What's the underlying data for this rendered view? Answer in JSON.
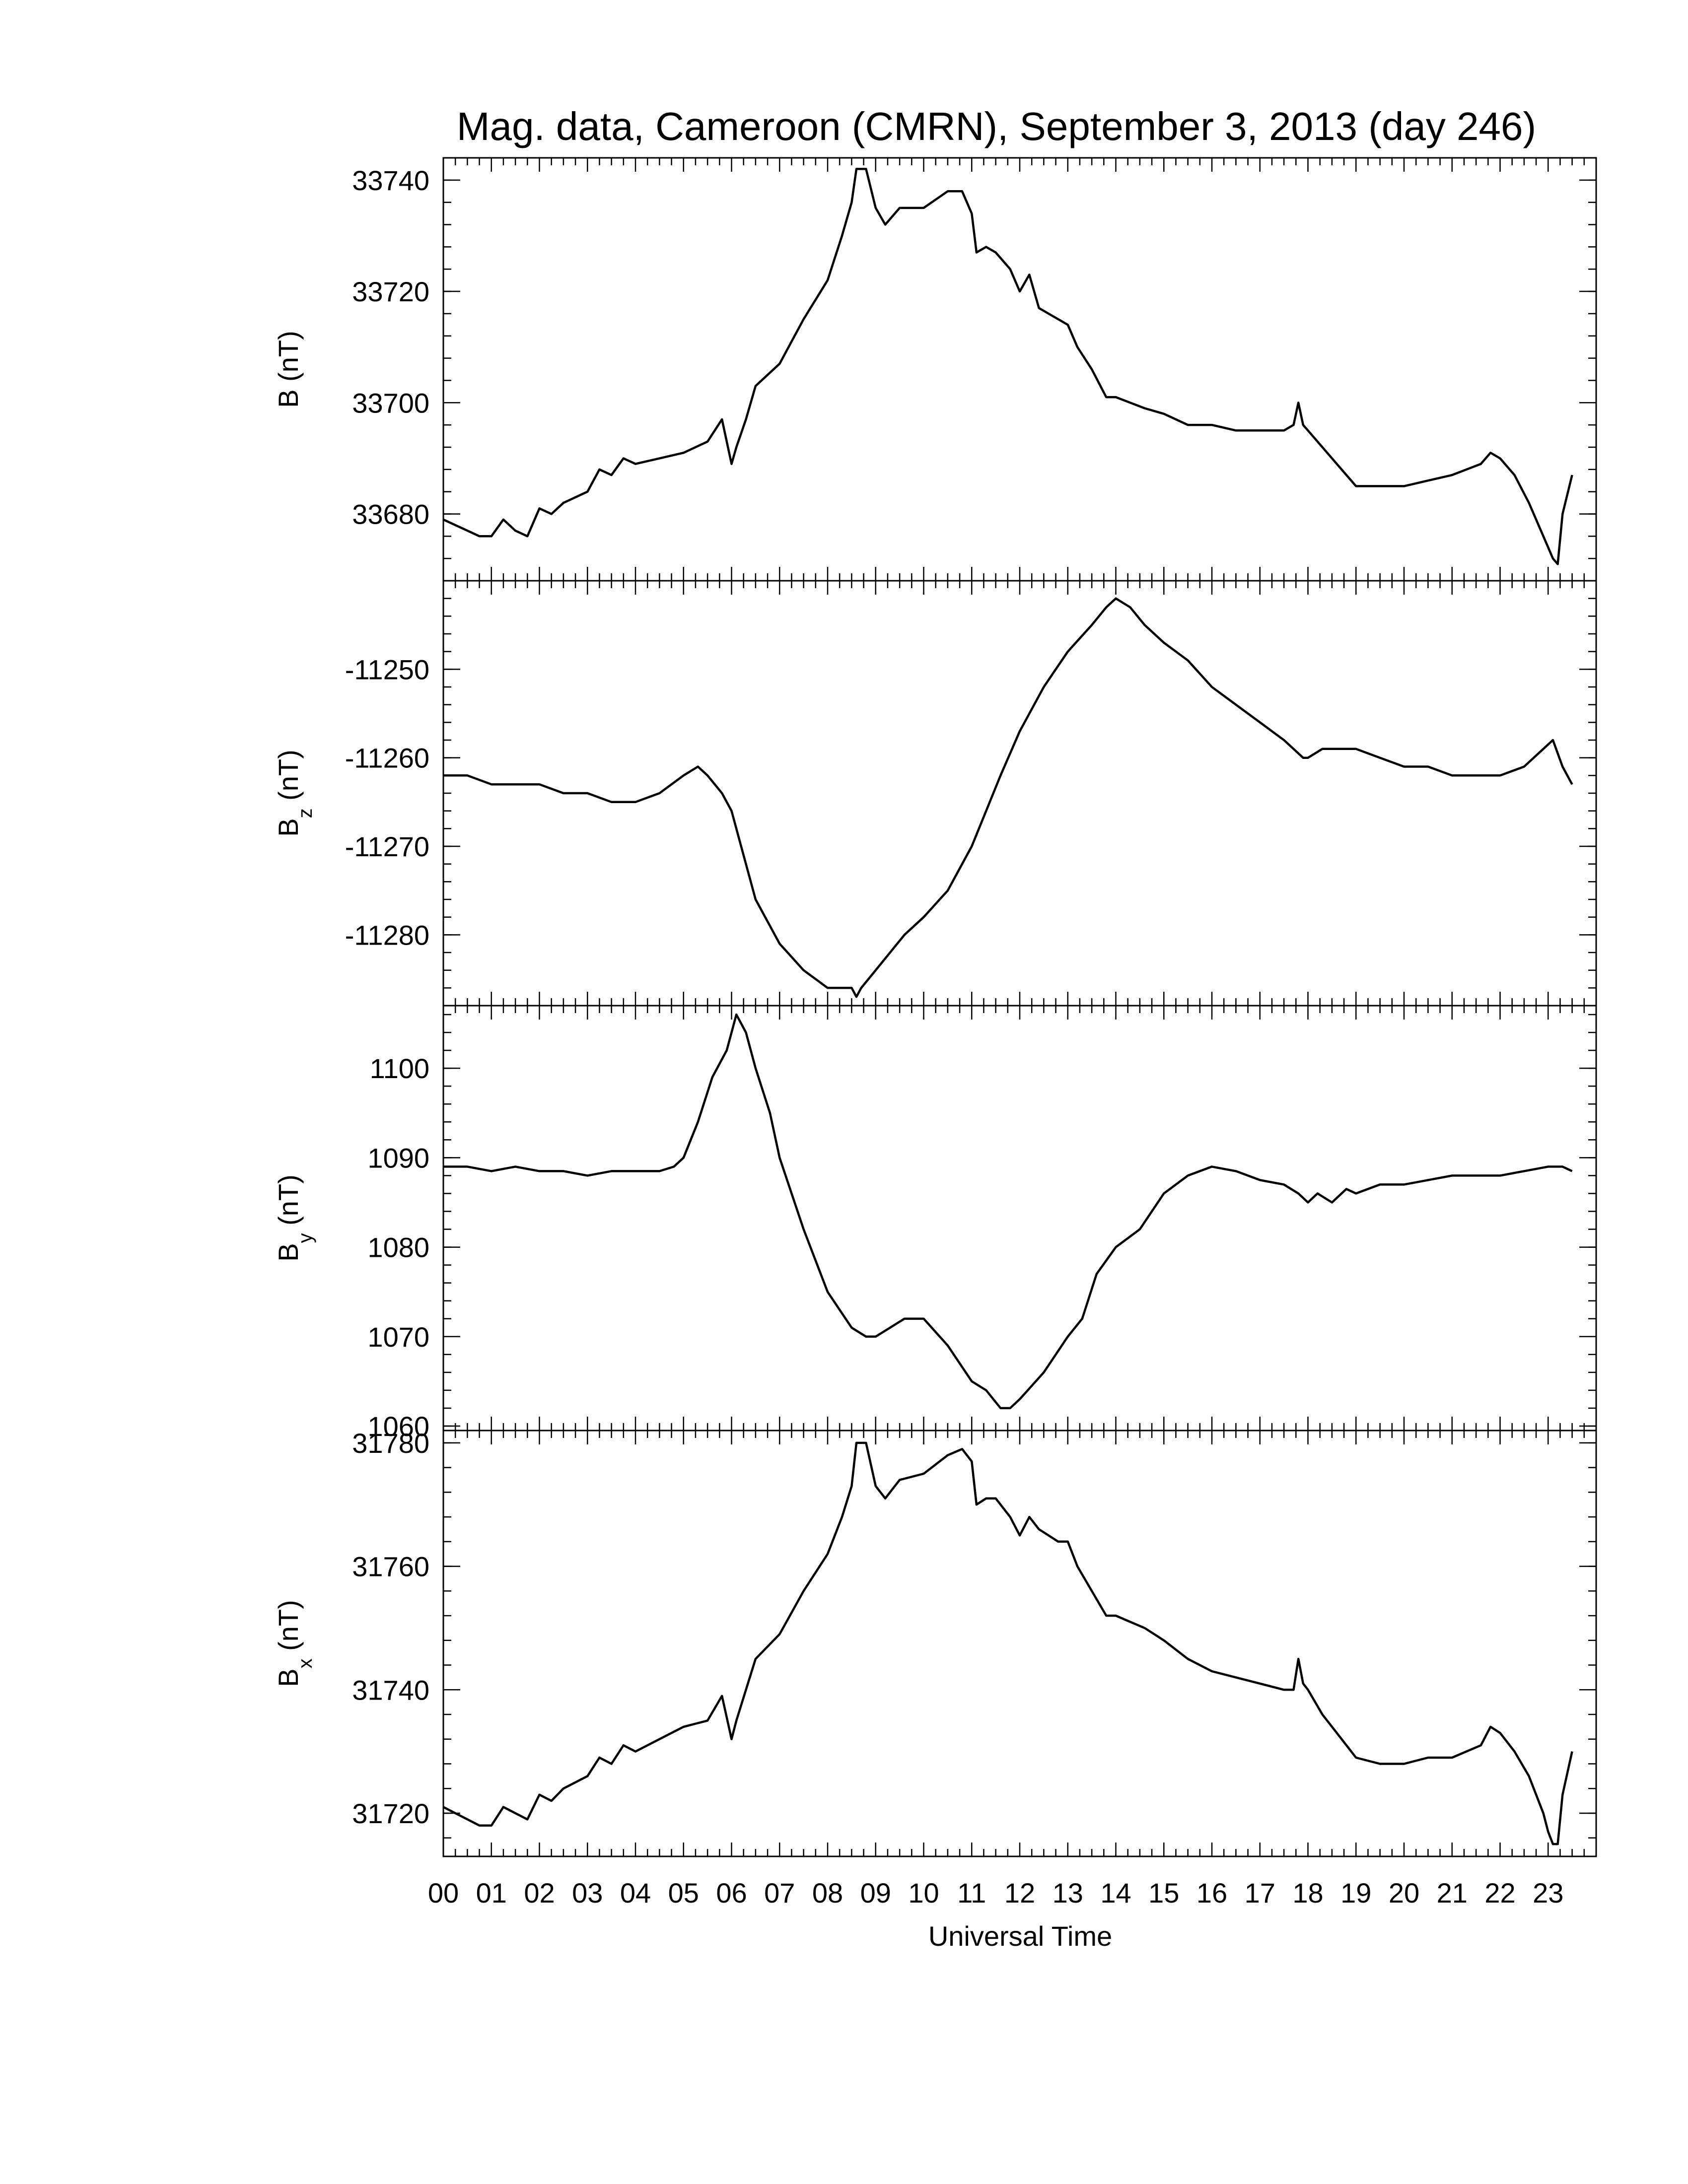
{
  "chart_data": {
    "type": "line",
    "title": "Mag. data, Cameroon (CMRN), September 3, 2013 (day 246)",
    "xlabel": "Universal Time",
    "xlim": [
      0,
      24
    ],
    "x_tick_labels": [
      "00",
      "01",
      "02",
      "03",
      "04",
      "05",
      "06",
      "07",
      "08",
      "09",
      "10",
      "11",
      "12",
      "13",
      "14",
      "15",
      "16",
      "17",
      "18",
      "19",
      "20",
      "21",
      "22",
      "23"
    ],
    "line_color": "#000000",
    "grid": false,
    "panels": [
      {
        "ylabel_main": "B",
        "ylabel_sub": "",
        "ylabel_unit": "(nT)",
        "ylim": [
          33668,
          33744
        ],
        "ytick_values": [
          33680,
          33700,
          33720,
          33740
        ],
        "ytick_labels": [
          "33680",
          "33700",
          "33720",
          "33740"
        ],
        "series": [
          {
            "x": [
              0,
              0.25,
              0.5,
              0.75,
              1.0,
              1.25,
              1.5,
              1.75,
              2.0,
              2.25,
              2.5,
              2.75,
              3.0,
              3.25,
              3.5,
              3.75,
              4.0,
              4.5,
              5.0,
              5.5,
              5.8,
              6.0,
              6.1,
              6.3,
              6.5,
              7.0,
              7.5,
              8.0,
              8.3,
              8.5,
              8.6,
              8.8,
              9.0,
              9.2,
              9.5,
              10.0,
              10.5,
              10.8,
              11.0,
              11.1,
              11.3,
              11.5,
              11.8,
              12.0,
              12.2,
              12.4,
              12.6,
              12.8,
              13.0,
              13.2,
              13.5,
              13.8,
              14.0,
              14.3,
              14.6,
              15.0,
              15.5,
              16.0,
              16.5,
              17.0,
              17.5,
              17.7,
              17.8,
              17.9,
              18.0,
              18.3,
              18.6,
              19.0,
              19.5,
              20.0,
              20.5,
              21.0,
              21.3,
              21.6,
              21.8,
              22.0,
              22.3,
              22.6,
              22.9,
              23.0,
              23.1,
              23.2,
              23.3,
              23.5
            ],
            "y": [
              33679,
              33678,
              33677,
              33676,
              33676,
              33679,
              33677,
              33676,
              33681,
              33680,
              33682,
              33683,
              33684,
              33688,
              33687,
              33690,
              33689,
              33690,
              33691,
              33693,
              33697,
              33689,
              33692,
              33697,
              33703,
              33707,
              33715,
              33722,
              33730,
              33736,
              33742,
              33742,
              33735,
              33732,
              33735,
              33735,
              33738,
              33738,
              33734,
              33727,
              33728,
              33727,
              33724,
              33720,
              33723,
              33717,
              33716,
              33715,
              33714,
              33710,
              33706,
              33701,
              33701,
              33700,
              33699,
              33698,
              33696,
              33696,
              33695,
              33695,
              33695,
              33696,
              33700,
              33696,
              33695,
              33692,
              33689,
              33685,
              33685,
              33685,
              33686,
              33687,
              33688,
              33689,
              33691,
              33690,
              33687,
              33682,
              33676,
              33674,
              33672,
              33671,
              33680,
              33687
            ]
          }
        ]
      },
      {
        "ylabel_main": "B",
        "ylabel_sub": "z",
        "ylabel_unit": "(nT)",
        "ylim": [
          -11288,
          -11240
        ],
        "ytick_values": [
          -11280,
          -11270,
          -11260,
          -11250
        ],
        "ytick_labels": [
          "-11280",
          "-11270",
          "-11260",
          "-11250"
        ],
        "series": [
          {
            "x": [
              0,
              0.5,
              1.0,
              1.5,
              2.0,
              2.5,
              3.0,
              3.5,
              4.0,
              4.5,
              5.0,
              5.3,
              5.5,
              5.8,
              6.0,
              6.2,
              6.5,
              7.0,
              7.5,
              8.0,
              8.3,
              8.5,
              8.6,
              8.7,
              9.0,
              9.3,
              9.6,
              10.0,
              10.5,
              11.0,
              11.3,
              11.6,
              12.0,
              12.5,
              13.0,
              13.5,
              13.8,
              14.0,
              14.3,
              14.6,
              15.0,
              15.5,
              16.0,
              16.5,
              17.0,
              17.5,
              17.7,
              17.9,
              18.0,
              18.3,
              18.6,
              19.0,
              19.5,
              20.0,
              20.5,
              21.0,
              21.5,
              22.0,
              22.5,
              22.9,
              23.1,
              23.3,
              23.5
            ],
            "y": [
              -11262,
              -11262,
              -11263,
              -11263,
              -11263,
              -11264,
              -11264,
              -11265,
              -11265,
              -11264,
              -11262,
              -11261,
              -11262,
              -11264,
              -11266,
              -11270,
              -11276,
              -11281,
              -11284,
              -11286,
              -11286,
              -11286,
              -11287,
              -11286,
              -11284,
              -11282,
              -11280,
              -11278,
              -11275,
              -11270,
              -11266,
              -11262,
              -11257,
              -11252,
              -11248,
              -11245,
              -11243,
              -11242,
              -11243,
              -11245,
              -11247,
              -11249,
              -11252,
              -11254,
              -11256,
              -11258,
              -11259,
              -11260,
              -11260,
              -11259,
              -11259,
              -11259,
              -11260,
              -11261,
              -11261,
              -11262,
              -11262,
              -11262,
              -11261,
              -11259,
              -11258,
              -11261,
              -11263
            ]
          }
        ]
      },
      {
        "ylabel_main": "B",
        "ylabel_sub": "y",
        "ylabel_unit": "(nT)",
        "ylim": [
          1059.5,
          1107
        ],
        "ytick_values": [
          1060,
          1070,
          1080,
          1090,
          1100
        ],
        "ytick_labels": [
          "1060",
          "1070",
          "1080",
          "1090",
          "1100"
        ],
        "series": [
          {
            "x": [
              0,
              0.5,
              1.0,
              1.5,
              2.0,
              2.5,
              3.0,
              3.5,
              4.0,
              4.5,
              4.8,
              5.0,
              5.3,
              5.6,
              5.9,
              6.1,
              6.3,
              6.5,
              6.8,
              7.0,
              7.5,
              8.0,
              8.5,
              8.8,
              9.0,
              9.3,
              9.6,
              10.0,
              10.5,
              11.0,
              11.3,
              11.6,
              11.8,
              12.0,
              12.5,
              13.0,
              13.3,
              13.6,
              14.0,
              14.5,
              15.0,
              15.5,
              16.0,
              16.5,
              17.0,
              17.5,
              17.8,
              18.0,
              18.2,
              18.5,
              18.8,
              19.0,
              19.5,
              20.0,
              20.5,
              21.0,
              21.5,
              22.0,
              22.5,
              23.0,
              23.3,
              23.5
            ],
            "y": [
              1089,
              1089,
              1088.5,
              1089,
              1088.5,
              1088.5,
              1088,
              1088.5,
              1088.5,
              1088.5,
              1089,
              1090,
              1094,
              1099,
              1102,
              1106,
              1104,
              1100,
              1095,
              1090,
              1082,
              1075,
              1071,
              1070,
              1070,
              1071,
              1072,
              1072,
              1069,
              1065,
              1064,
              1062,
              1062,
              1063,
              1066,
              1070,
              1072,
              1077,
              1080,
              1082,
              1086,
              1088,
              1089,
              1088.5,
              1087.5,
              1087,
              1086,
              1085,
              1086,
              1085,
              1086.5,
              1086,
              1087,
              1087,
              1087.5,
              1088,
              1088,
              1088,
              1088.5,
              1089,
              1089,
              1088.5
            ]
          }
        ]
      },
      {
        "ylabel_main": "B",
        "ylabel_sub": "x",
        "ylabel_unit": "(nT)",
        "ylim": [
          31713,
          31782
        ],
        "ytick_values": [
          31720,
          31740,
          31760,
          31780
        ],
        "ytick_labels": [
          "31720",
          "31740",
          "31760",
          "31780"
        ],
        "series": [
          {
            "x": [
              0,
              0.25,
              0.5,
              0.75,
              1.0,
              1.25,
              1.5,
              1.75,
              2.0,
              2.25,
              2.5,
              2.75,
              3.0,
              3.25,
              3.5,
              3.75,
              4.0,
              4.5,
              5.0,
              5.5,
              5.8,
              6.0,
              6.1,
              6.3,
              6.5,
              7.0,
              7.5,
              8.0,
              8.3,
              8.5,
              8.6,
              8.8,
              9.0,
              9.2,
              9.5,
              10.0,
              10.5,
              10.8,
              11.0,
              11.1,
              11.3,
              11.5,
              11.8,
              12.0,
              12.2,
              12.4,
              12.6,
              12.8,
              13.0,
              13.2,
              13.5,
              13.8,
              14.0,
              14.3,
              14.6,
              15.0,
              15.5,
              16.0,
              16.5,
              17.0,
              17.5,
              17.7,
              17.8,
              17.9,
              18.0,
              18.3,
              18.6,
              19.0,
              19.5,
              20.0,
              20.5,
              21.0,
              21.3,
              21.6,
              21.8,
              22.0,
              22.3,
              22.6,
              22.9,
              23.0,
              23.1,
              23.2,
              23.3,
              23.5
            ],
            "y": [
              31721,
              31720,
              31719,
              31718,
              31718,
              31721,
              31720,
              31719,
              31723,
              31722,
              31724,
              31725,
              31726,
              31729,
              31728,
              31731,
              31730,
              31732,
              31734,
              31735,
              31739,
              31732,
              31735,
              31740,
              31745,
              31749,
              31756,
              31762,
              31768,
              31773,
              31780,
              31780,
              31773,
              31771,
              31774,
              31775,
              31778,
              31779,
              31777,
              31770,
              31771,
              31771,
              31768,
              31765,
              31768,
              31766,
              31765,
              31764,
              31764,
              31760,
              31756,
              31752,
              31752,
              31751,
              31750,
              31748,
              31745,
              31743,
              31742,
              31741,
              31740,
              31740,
              31745,
              31741,
              31740,
              31736,
              31733,
              31729,
              31728,
              31728,
              31729,
              31729,
              31730,
              31731,
              31734,
              31733,
              31730,
              31726,
              31720,
              31717,
              31715,
              31715,
              31723,
              31730
            ]
          }
        ]
      }
    ]
  }
}
